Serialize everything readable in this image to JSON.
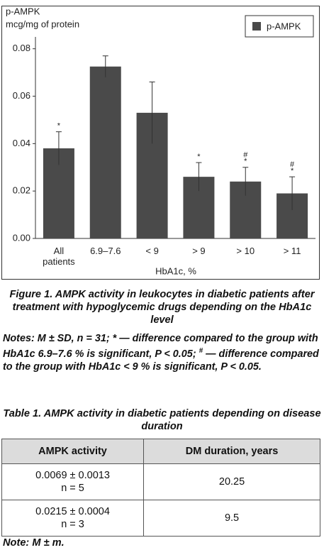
{
  "chart_data": {
    "type": "bar",
    "ylabel": [
      "p-AMPK",
      "mcg/mg of protein"
    ],
    "xlabel": "HbA1c, %",
    "categories": [
      "All patients",
      "6.9–7.6",
      "< 9",
      "> 9",
      "> 10",
      "> 11"
    ],
    "series": [
      {
        "name": "p-AMPK",
        "color": "#4a4a4a",
        "values": [
          0.038,
          0.0725,
          0.053,
          0.026,
          0.024,
          0.019
        ],
        "errors": [
          0.007,
          0.0045,
          0.013,
          0.006,
          0.006,
          0.007
        ]
      }
    ],
    "markers": [
      [
        "*"
      ],
      null,
      null,
      [
        "*"
      ],
      [
        "#",
        "*"
      ],
      [
        "#",
        "*"
      ]
    ],
    "ylim": [
      0,
      0.085
    ],
    "yticks": [
      {
        "value": 0,
        "label": "0.00"
      },
      {
        "value": 0.02,
        "label": "0.02"
      },
      {
        "value": 0.04,
        "label": "0.04"
      },
      {
        "value": 0.06,
        "label": "0.06"
      },
      {
        "value": 0.08,
        "label": "0.08"
      }
    ],
    "legend": "upper right"
  },
  "caption": "Figure 1. AMPK activity in leukocytes in diabetic patients after treatment with hypoglycemic drugs depending on the HbA1c level",
  "notes": [
    "Notes: M ± SD, n = 31; * — difference compared to the group with HbA1c 6.9–7.6 % is significant, P < 0.05; ",
    "#",
    " — difference compared to the group with HbA1c < 9 % is significant, P < 0.05."
  ],
  "table": {
    "title": "Table 1. AMPK activity in diabetic patients depending on disease duration",
    "header": [
      "AMPK activity",
      "DM duration, years"
    ],
    "rows": [
      [
        [
          "0.0069 ± 0.0013",
          "n = 5"
        ],
        "20.25"
      ],
      [
        [
          "0.0215 ± 0.0004",
          "n = 3"
        ],
        "9.5"
      ]
    ],
    "note": "Note: M ± m."
  }
}
